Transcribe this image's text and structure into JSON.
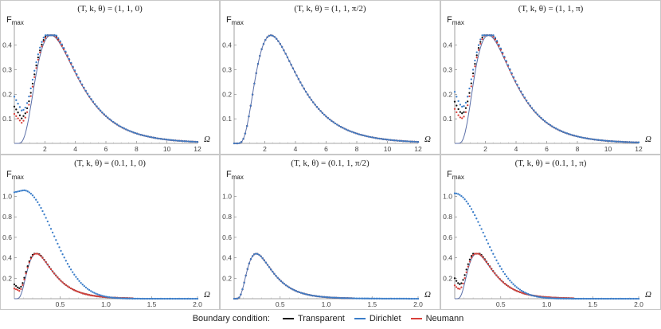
{
  "legend": {
    "title": "Boundary condition:",
    "items": [
      {
        "label": "Transparent",
        "color": "#111111"
      },
      {
        "label": "Dirichlet",
        "color": "#3a7dc9"
      },
      {
        "label": "Neumann",
        "color": "#d9403a"
      }
    ]
  },
  "chart_data": [
    {
      "type": "scatter",
      "title": "(T, k, θ) = (1, 1, 0)",
      "ylabel": "F_max",
      "xlabel": "Ω",
      "xlim": [
        0,
        12
      ],
      "ylim": [
        0,
        0.48
      ],
      "xticks": [
        2,
        4,
        6,
        8,
        10,
        12
      ],
      "yticks": [
        0.1,
        0.2,
        0.3,
        0.4
      ],
      "peak_x": 2.4,
      "peak_y": 0.44,
      "series": [
        {
          "name": "Transparent",
          "start": 0.15,
          "dip_x": 0.6,
          "dip_y": 0.09
        },
        {
          "name": "Dirichlet",
          "start": 0.19,
          "dip_x": 0.6,
          "dip_y": 0.12
        },
        {
          "name": "Neumann",
          "start": 0.12,
          "dip_x": 0.6,
          "dip_y": 0.075
        }
      ]
    },
    {
      "type": "scatter",
      "title": "(T, k, θ) = (1, 1, π/2)",
      "ylabel": "F_max",
      "xlabel": "Ω",
      "xlim": [
        0,
        12
      ],
      "ylim": [
        0,
        0.48
      ],
      "xticks": [
        2,
        4,
        6,
        8,
        10,
        12
      ],
      "yticks": [
        0.1,
        0.2,
        0.3,
        0.4
      ],
      "peak_x": 2.4,
      "peak_y": 0.44,
      "series": [
        {
          "name": "Transparent",
          "start": 0.0
        },
        {
          "name": "Dirichlet",
          "start": 0.0
        },
        {
          "name": "Neumann",
          "start": 0.0
        }
      ]
    },
    {
      "type": "scatter",
      "title": "(T, k, θ) = (1, 1, π)",
      "ylabel": "F_max",
      "xlabel": "Ω",
      "xlim": [
        0,
        12
      ],
      "ylim": [
        0,
        0.48
      ],
      "xticks": [
        2,
        4,
        6,
        8,
        10,
        12
      ],
      "yticks": [
        0.1,
        0.2,
        0.3,
        0.4
      ],
      "peak_x": 2.2,
      "peak_y": 0.44,
      "series": [
        {
          "name": "Transparent",
          "start": 0.17
        },
        {
          "name": "Dirichlet",
          "start": 0.21
        },
        {
          "name": "Neumann",
          "start": 0.14
        }
      ]
    },
    {
      "type": "scatter",
      "title": "(T, k, θ) = (0.1, 1, 0)",
      "ylabel": "F_max",
      "xlabel": "Ω",
      "xlim": [
        0,
        2
      ],
      "ylim": [
        0,
        1.16
      ],
      "xticks": [
        0.5,
        1.0,
        1.5,
        2.0
      ],
      "yticks": [
        0.2,
        0.4,
        0.6,
        0.8,
        1.0
      ],
      "peak_x": 0.24,
      "peak_y": 0.44,
      "dirichlet_peak_x": 0.1,
      "dirichlet_peak_y": 1.06,
      "series": [
        {
          "name": "Transparent",
          "start": 0.14,
          "dip_x": 0.05,
          "dip_y": 0.1
        },
        {
          "name": "Dirichlet",
          "start": 1.04
        },
        {
          "name": "Neumann",
          "start": 0.1,
          "dip_x": 0.05,
          "dip_y": 0.08
        }
      ]
    },
    {
      "type": "scatter",
      "title": "(T, k, θ) = (0.1, 1, π/2)",
      "ylabel": "F_max",
      "xlabel": "Ω",
      "xlim": [
        0,
        2
      ],
      "ylim": [
        0,
        1.16
      ],
      "xticks": [
        0.5,
        1.0,
        1.5,
        2.0
      ],
      "yticks": [
        0.2,
        0.4,
        0.6,
        0.8,
        1.0
      ],
      "peak_x": 0.24,
      "peak_y": 0.44,
      "series": [
        {
          "name": "Transparent",
          "start": 0.0
        },
        {
          "name": "Dirichlet",
          "start": 0.0
        },
        {
          "name": "Neumann",
          "start": 0.0
        }
      ]
    },
    {
      "type": "scatter",
      "title": "(T, k, θ) = (0.1, 1, π)",
      "ylabel": "F_max",
      "xlabel": "Ω",
      "xlim": [
        0,
        2
      ],
      "ylim": [
        0,
        1.16
      ],
      "xticks": [
        0.5,
        1.0,
        1.5,
        2.0
      ],
      "yticks": [
        0.2,
        0.4,
        0.6,
        0.8,
        1.0
      ],
      "peak_x": 0.24,
      "peak_y": 0.44,
      "dirichlet_peak_x": 0.0,
      "dirichlet_peak_y": 1.03,
      "series": [
        {
          "name": "Transparent",
          "start": 0.2
        },
        {
          "name": "Dirichlet",
          "start": 1.03
        },
        {
          "name": "Neumann",
          "start": 0.13
        }
      ]
    }
  ]
}
